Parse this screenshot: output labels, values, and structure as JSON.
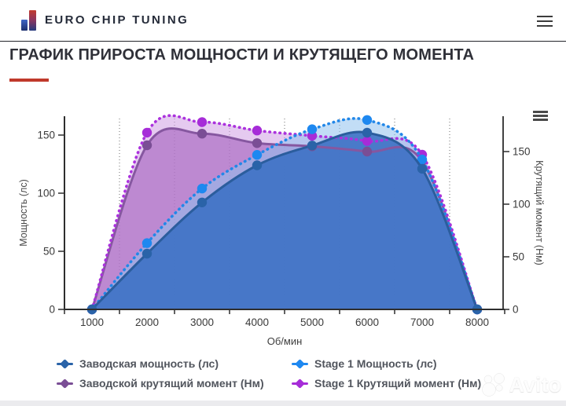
{
  "header": {
    "brand": "EURO CHIP TUNING"
  },
  "page_title": "ГРАФИК ПРИРОСТА МОЩНОСТИ И КРУТЯЩЕГО МОМЕНТА",
  "watermark": "Avito",
  "chart_data": {
    "type": "area",
    "x": [
      1000,
      2000,
      3000,
      4000,
      5000,
      6000,
      7000,
      8000
    ],
    "xlabel": "Об/мин",
    "left_axis": {
      "label": "Мощность (лс)",
      "ticks": [
        0,
        50,
        100,
        150
      ]
    },
    "right_axis": {
      "label": "Крутящий момент (Нм)",
      "ticks": [
        0,
        50,
        100,
        150
      ]
    },
    "grid": "vertical-dotted-between-ticks",
    "legend_position": "bottom",
    "series": [
      {
        "id": "stock-power",
        "name": "Заводская мощность (лс)",
        "axis": "left",
        "line": "solid",
        "color": "#2b5d9d",
        "marker_color": "#2a63a8",
        "fill": "#3a6fc4",
        "fill_opacity": 0.88,
        "values": [
          0,
          48,
          92,
          124,
          141,
          152,
          121,
          0
        ]
      },
      {
        "id": "stage1-power",
        "name": "Stage 1 Мощность (лс)",
        "axis": "left",
        "line": "dotted",
        "color": "#2287e8",
        "marker_color": "#1e88f0",
        "fill": "#8fc1ef",
        "fill_opacity": 0.55,
        "values": [
          0,
          57,
          104,
          133,
          155,
          163,
          129,
          0
        ]
      },
      {
        "id": "stock-torque",
        "name": "Заводской крутящий момент (Нм)",
        "axis": "right",
        "line": "solid",
        "color": "#8657a0",
        "marker_color": "#7a4e95",
        "fill": "#a866c0",
        "fill_opacity": 0.65,
        "values": [
          0,
          156,
          167,
          158,
          155,
          150,
          141,
          0
        ]
      },
      {
        "id": "stage1-torque",
        "name": "Stage 1 Крутящий момент (Нм)",
        "axis": "right",
        "line": "dotted",
        "color": "#ab32dd",
        "marker_color": "#a62cd8",
        "fill": "#cf9fe3",
        "fill_opacity": 0.55,
        "values": [
          0,
          168,
          178,
          170,
          165,
          160,
          147,
          0
        ]
      }
    ]
  }
}
